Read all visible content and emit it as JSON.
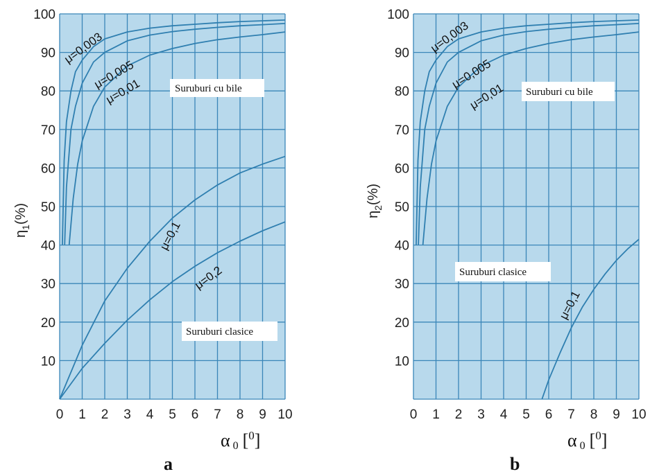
{
  "colors": {
    "plot_bg": "#b8d9ec",
    "grid": "#3a86b8",
    "curve": "#2f7fb0",
    "label_box": "#ffffff"
  },
  "chart_data": [
    {
      "type": "line",
      "subtitle": "a",
      "ylabel_main": "η",
      "ylabel_sub": "1",
      "ylabel_unit": "(%)",
      "xlabel_main": "α",
      "xlabel_sub": "0",
      "xlabel_unit_open": "[",
      "xlabel_unit_sup": "0",
      "xlabel_unit_close": "]",
      "xlim": [
        0,
        10
      ],
      "ylim": [
        0,
        100
      ],
      "x_ticks": [
        "0",
        "1",
        "2",
        "3",
        "4",
        "5",
        "6",
        "7",
        "8",
        "9",
        "10"
      ],
      "y_ticks": [
        "10",
        "20",
        "30",
        "40",
        "50",
        "60",
        "70",
        "80",
        "90",
        "100"
      ],
      "grid": true,
      "series": [
        {
          "name": "μ=0,003",
          "x": [
            0.12,
            0.2,
            0.3,
            0.5,
            0.7,
            1,
            1.5,
            2,
            3,
            4,
            5,
            6,
            7,
            8,
            9,
            10
          ],
          "y": [
            40,
            62,
            72,
            80,
            85,
            88,
            91.5,
            93.5,
            95.3,
            96.3,
            96.9,
            97.3,
            97.7,
            98,
            98.2,
            98.4
          ]
        },
        {
          "name": "μ=0,005",
          "x": [
            0.22,
            0.3,
            0.5,
            0.7,
            1,
            1.5,
            2,
            3,
            4,
            5,
            6,
            7,
            8,
            9,
            10
          ],
          "y": [
            40,
            55,
            70,
            76,
            82,
            87.5,
            90,
            93,
            94.5,
            95.4,
            96,
            96.5,
            96.9,
            97.2,
            97.5
          ]
        },
        {
          "name": "μ=0,01",
          "x": [
            0.42,
            0.6,
            0.8,
            1,
            1.5,
            2,
            3,
            4,
            5,
            6,
            7,
            8,
            9,
            10
          ],
          "y": [
            40,
            52,
            61,
            67,
            76,
            81,
            86.5,
            89.3,
            91,
            92.3,
            93.3,
            94,
            94.6,
            95.3
          ]
        },
        {
          "name": "μ=0,1",
          "x": [
            0,
            1,
            2,
            3,
            4,
            5,
            6,
            7,
            8,
            9,
            10
          ],
          "y": [
            0,
            14,
            25.5,
            34,
            41,
            47,
            51.7,
            55.6,
            58.7,
            61,
            63
          ]
        },
        {
          "name": "μ=0,2",
          "x": [
            0,
            1,
            2,
            3,
            4,
            5,
            6,
            7,
            8,
            9,
            10
          ],
          "y": [
            0,
            8,
            14.5,
            20.5,
            25.8,
            30.5,
            34.5,
            38,
            41,
            43.7,
            46
          ]
        }
      ],
      "annotations": [
        "Suruburi cu bile",
        "Suruburi clasice"
      ]
    },
    {
      "type": "line",
      "subtitle": "b",
      "ylabel_main": "η",
      "ylabel_sub": "2",
      "ylabel_unit": "(%)",
      "xlabel_main": "α",
      "xlabel_sub": "0",
      "xlabel_unit_open": "[",
      "xlabel_unit_sup": "0",
      "xlabel_unit_close": "]",
      "xlim": [
        0,
        10
      ],
      "ylim": [
        0,
        100
      ],
      "x_ticks": [
        "0",
        "1",
        "2",
        "3",
        "4",
        "5",
        "6",
        "7",
        "8",
        "9",
        "10"
      ],
      "y_ticks": [
        "10",
        "20",
        "30",
        "40",
        "50",
        "60",
        "70",
        "80",
        "90",
        "100"
      ],
      "grid": true,
      "series": [
        {
          "name": "μ=0,003",
          "x": [
            0.12,
            0.2,
            0.3,
            0.5,
            0.7,
            1,
            1.5,
            2,
            3,
            4,
            5,
            6,
            7,
            8,
            9,
            10
          ],
          "y": [
            40,
            62,
            72,
            80,
            85,
            88,
            91.5,
            93.5,
            95.3,
            96.3,
            96.9,
            97.3,
            97.7,
            98,
            98.2,
            98.4
          ]
        },
        {
          "name": "μ=0,005",
          "x": [
            0.22,
            0.3,
            0.5,
            0.7,
            1,
            1.5,
            2,
            3,
            4,
            5,
            6,
            7,
            8,
            9,
            10
          ],
          "y": [
            40,
            55,
            70,
            76,
            82,
            87.5,
            90,
            93,
            94.5,
            95.4,
            96,
            96.5,
            96.9,
            97.2,
            97.5
          ]
        },
        {
          "name": "μ=0,01",
          "x": [
            0.42,
            0.6,
            0.8,
            1,
            1.5,
            2,
            3,
            4,
            5,
            6,
            7,
            8,
            9,
            10
          ],
          "y": [
            40,
            52,
            61,
            67,
            76,
            81,
            86.5,
            89.3,
            91,
            92.3,
            93.3,
            94,
            94.6,
            95.3
          ]
        },
        {
          "name": "μ=0,1",
          "x": [
            5.7,
            6,
            6.5,
            7,
            7.5,
            8,
            8.5,
            9,
            9.5,
            10
          ],
          "y": [
            0,
            5,
            12,
            18.5,
            24,
            28.5,
            32.5,
            36,
            39,
            41.5
          ]
        }
      ],
      "annotations": [
        "Suruburi cu bile",
        "Suruburi clasice"
      ]
    }
  ]
}
